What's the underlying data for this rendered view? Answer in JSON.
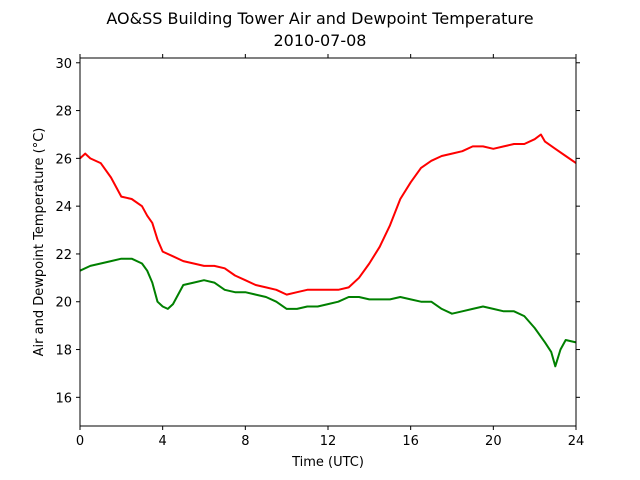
{
  "chart_data": {
    "type": "line",
    "title": "AO&SS Building Tower Air and Dewpoint Temperature",
    "subtitle": "2010-07-08",
    "xlabel": "Time (UTC)",
    "ylabel": "Air and Dewpoint Temperature (°C)",
    "xlim": [
      0,
      24
    ],
    "ylim": [
      14.8,
      30.2
    ],
    "xticks": [
      0,
      4,
      8,
      12,
      16,
      20,
      24
    ],
    "yticks": [
      16,
      18,
      20,
      22,
      24,
      26,
      28,
      30
    ],
    "grid": false,
    "legend": "none",
    "series": [
      {
        "color": "#ff0000",
        "x": [
          0,
          0.25,
          0.5,
          1.0,
          1.5,
          2.0,
          2.5,
          3.0,
          3.25,
          3.5,
          3.75,
          4.0,
          4.5,
          5.0,
          5.5,
          6.0,
          6.5,
          7.0,
          7.5,
          8.0,
          8.5,
          9.0,
          9.5,
          10.0,
          10.5,
          11.0,
          11.5,
          12.0,
          12.5,
          13.0,
          13.5,
          14.0,
          14.5,
          15.0,
          15.5,
          16.0,
          16.5,
          17.0,
          17.5,
          18.0,
          18.5,
          19.0,
          19.5,
          20.0,
          20.5,
          21.0,
          21.5,
          22.0,
          22.3,
          22.5,
          23.0,
          23.5,
          24.0
        ],
        "y": [
          26.0,
          26.2,
          26.0,
          25.8,
          25.2,
          24.4,
          24.3,
          24.0,
          23.6,
          23.3,
          22.6,
          22.1,
          21.9,
          21.7,
          21.6,
          21.5,
          21.5,
          21.4,
          21.1,
          20.9,
          20.7,
          20.6,
          20.5,
          20.3,
          20.4,
          20.5,
          20.5,
          20.5,
          20.5,
          20.6,
          21.0,
          21.6,
          22.3,
          23.2,
          24.3,
          25.0,
          25.6,
          25.9,
          26.1,
          26.2,
          26.3,
          26.5,
          26.5,
          26.4,
          26.5,
          26.6,
          26.6,
          26.8,
          27.0,
          26.7,
          26.4,
          26.1,
          25.8
        ]
      },
      {
        "color": "#008000",
        "x": [
          0,
          0.5,
          1.0,
          1.5,
          2.0,
          2.5,
          3.0,
          3.25,
          3.5,
          3.75,
          4.0,
          4.25,
          4.5,
          5.0,
          5.5,
          6.0,
          6.5,
          7.0,
          7.5,
          8.0,
          8.5,
          9.0,
          9.5,
          10.0,
          10.5,
          11.0,
          11.5,
          12.0,
          12.5,
          13.0,
          13.5,
          14.0,
          14.5,
          15.0,
          15.5,
          16.0,
          16.5,
          17.0,
          17.5,
          18.0,
          18.5,
          19.0,
          19.5,
          20.0,
          20.5,
          21.0,
          21.5,
          22.0,
          22.5,
          22.8,
          23.0,
          23.25,
          23.5,
          24.0
        ],
        "y": [
          21.3,
          21.5,
          21.6,
          21.7,
          21.8,
          21.8,
          21.6,
          21.3,
          20.8,
          20.0,
          19.8,
          19.7,
          19.9,
          20.7,
          20.8,
          20.9,
          20.8,
          20.5,
          20.4,
          20.4,
          20.3,
          20.2,
          20.0,
          19.7,
          19.7,
          19.8,
          19.8,
          19.9,
          20.0,
          20.2,
          20.2,
          20.1,
          20.1,
          20.1,
          20.2,
          20.1,
          20.0,
          20.0,
          19.7,
          19.5,
          19.6,
          19.7,
          19.8,
          19.7,
          19.6,
          19.6,
          19.4,
          18.9,
          18.3,
          17.9,
          17.3,
          18.0,
          18.4,
          18.3
        ]
      }
    ]
  }
}
